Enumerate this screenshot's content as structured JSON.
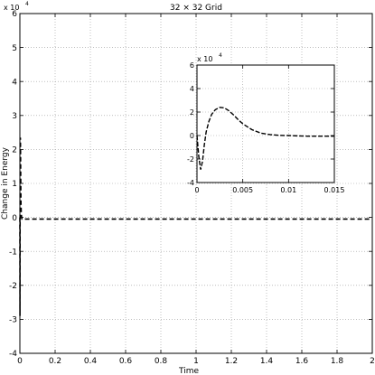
{
  "chart_data": [
    {
      "type": "line",
      "title": "32 × 32 Grid",
      "xlabel": "Time",
      "ylabel": "Change in Energy",
      "exponent_label": "x 10",
      "exponent": "4",
      "xlim": [
        0,
        2
      ],
      "ylim": [
        -4,
        6
      ],
      "x_ticks": [
        "0",
        "0.2",
        "0.4",
        "0.6",
        "0.8",
        "1",
        "1.2",
        "1.4",
        "1.6",
        "1.8",
        "2"
      ],
      "y_ticks": [
        "-4",
        "-3",
        "-2",
        "-1",
        "0",
        "1",
        "2",
        "3",
        "4",
        "5",
        "6"
      ],
      "grid": true,
      "series": [
        {
          "style": "dashed",
          "color": "#000000",
          "x": [
            0,
            0.0005,
            0.001,
            0.0015,
            0.002,
            0.0025,
            0.003,
            0.004,
            0.005,
            0.006,
            0.008,
            0.01,
            0.012,
            0.015,
            0.1,
            0.5,
            1.0,
            1.5,
            2.0
          ],
          "y": [
            0,
            -2.9,
            -0.8,
            1.2,
            2.1,
            2.35,
            2.3,
            1.75,
            1.0,
            0.45,
            0.1,
            0.0,
            -0.05,
            -0.05,
            -0.05,
            -0.05,
            -0.05,
            -0.05,
            -0.05
          ]
        }
      ]
    },
    {
      "type": "line",
      "title": "",
      "exponent_label": "x 10",
      "exponent": "4",
      "xlim": [
        0,
        0.015
      ],
      "ylim": [
        -4,
        6
      ],
      "x_ticks": [
        "0",
        "0.005",
        "0.01",
        "0.015"
      ],
      "x_tick_values": [
        0,
        0.005,
        0.01,
        0.015
      ],
      "y_ticks": [
        "-4",
        "-2",
        "0",
        "2",
        "4",
        "6"
      ],
      "y_tick_values": [
        -4,
        -2,
        0,
        2,
        4,
        6
      ],
      "grid": true,
      "series": [
        {
          "style": "dashed",
          "color": "#000000",
          "x": [
            0,
            0.0002,
            0.0004,
            0.0006,
            0.0008,
            0.001,
            0.0013,
            0.0016,
            0.002,
            0.0025,
            0.003,
            0.0035,
            0.004,
            0.0045,
            0.005,
            0.006,
            0.007,
            0.008,
            0.009,
            0.01,
            0.011,
            0.012,
            0.013,
            0.014,
            0.015
          ],
          "y": [
            0,
            -1.8,
            -2.9,
            -2.2,
            -0.8,
            0.3,
            1.2,
            1.8,
            2.2,
            2.4,
            2.35,
            2.1,
            1.75,
            1.35,
            1.0,
            0.5,
            0.2,
            0.08,
            0.02,
            0.0,
            -0.03,
            -0.05,
            -0.05,
            -0.05,
            -0.05
          ]
        }
      ]
    }
  ]
}
